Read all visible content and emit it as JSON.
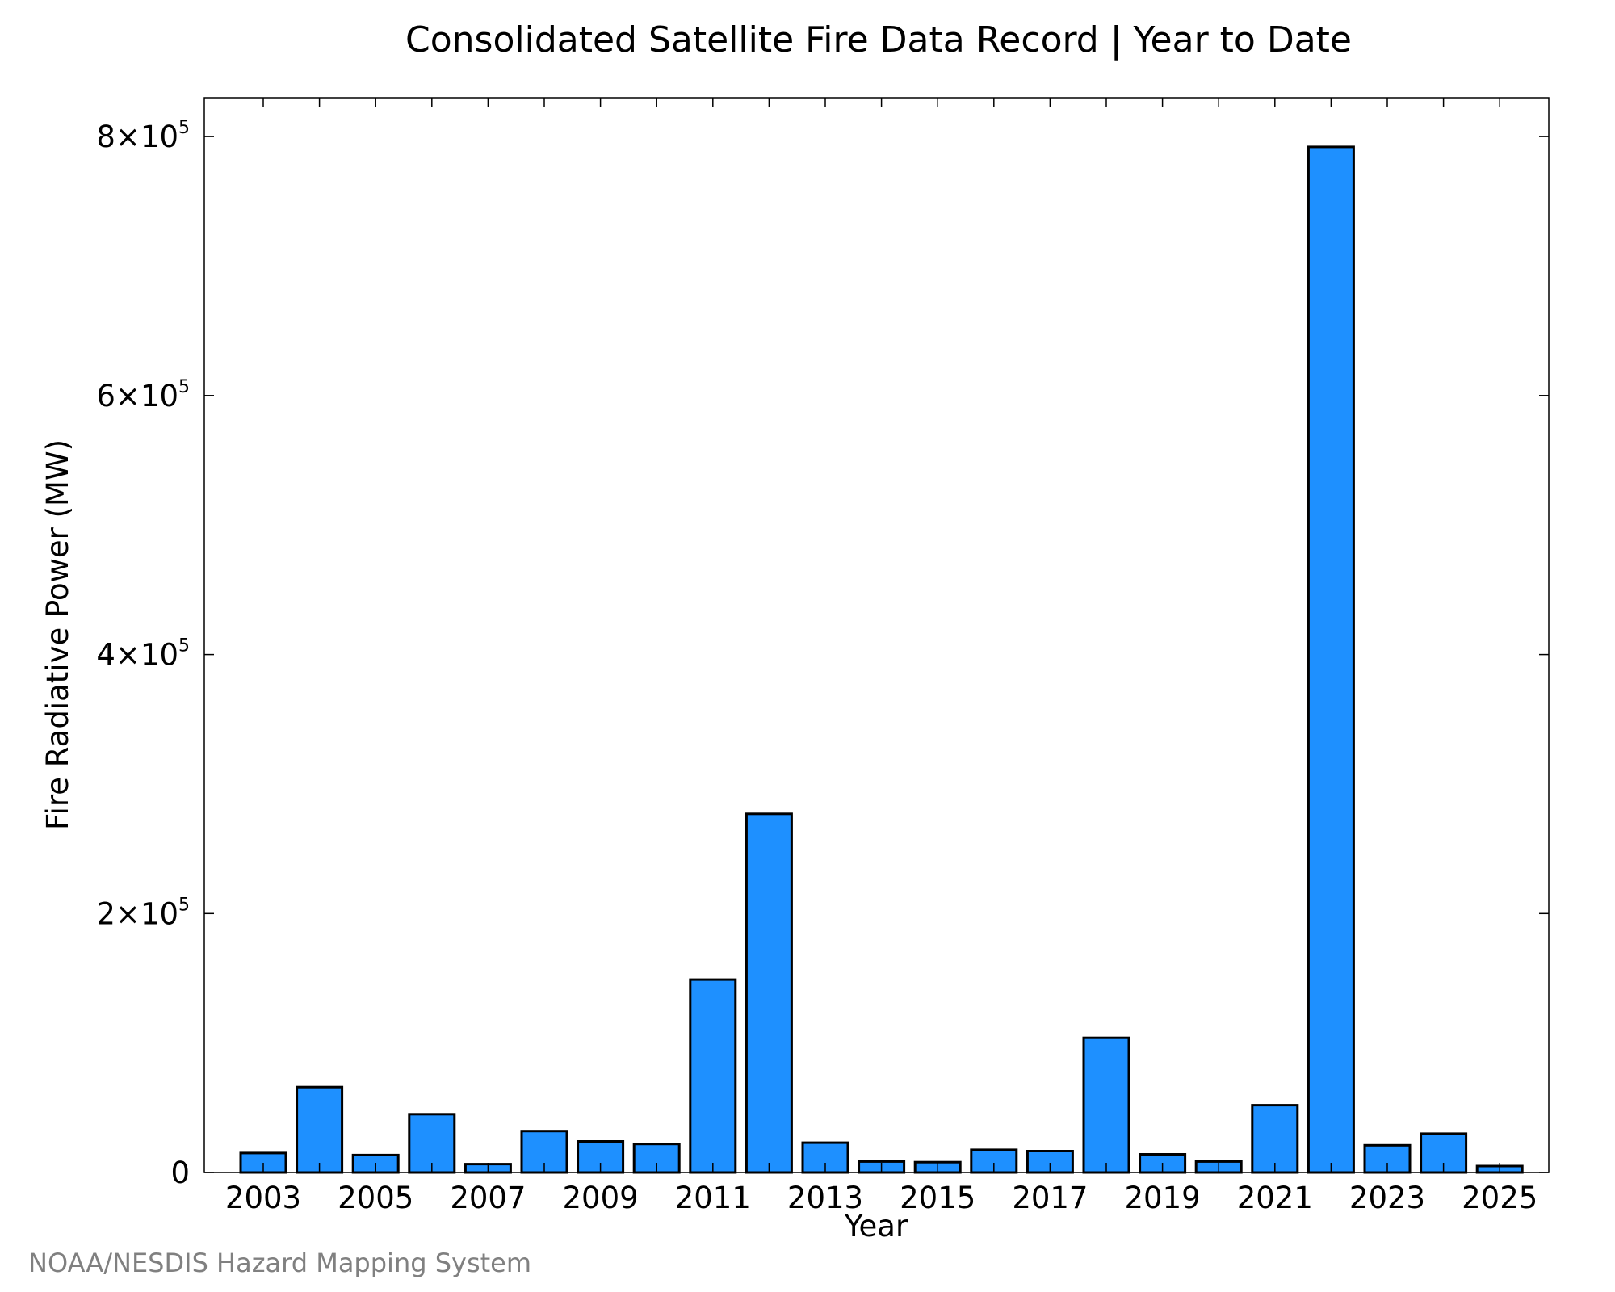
{
  "chart_data": {
    "type": "bar",
    "title": "Consolidated Satellite Fire Data Record | Year to Date",
    "xlabel": "Year",
    "ylabel": "Fire Radiative Power (MW)",
    "categories": [
      "2003",
      "2004",
      "2005",
      "2006",
      "2007",
      "2008",
      "2009",
      "2010",
      "2011",
      "2012",
      "2013",
      "2014",
      "2015",
      "2016",
      "2017",
      "2018",
      "2019",
      "2020",
      "2021",
      "2022",
      "2023",
      "2024",
      "2025"
    ],
    "values": [
      15000,
      66000,
      13500,
      45000,
      6500,
      32000,
      24000,
      22000,
      149000,
      277000,
      23000,
      8500,
      8000,
      17500,
      16500,
      104000,
      14000,
      8500,
      52000,
      792000,
      21000,
      30000,
      5000
    ],
    "ylim": [
      0,
      830000
    ],
    "yticks": [
      {
        "value": 0,
        "mantissa": "0",
        "exp": ""
      },
      {
        "value": 200000,
        "mantissa": "2×10",
        "exp": "5"
      },
      {
        "value": 400000,
        "mantissa": "4×10",
        "exp": "5"
      },
      {
        "value": 600000,
        "mantissa": "6×10",
        "exp": "5"
      },
      {
        "value": 800000,
        "mantissa": "8×10",
        "exp": "5"
      }
    ],
    "xtick_labels": [
      "2003",
      "2005",
      "2007",
      "2009",
      "2011",
      "2013",
      "2015",
      "2017",
      "2019",
      "2021",
      "2023",
      "2025"
    ],
    "bar_color": "#1e90ff",
    "grid": false,
    "source": "NOAA/NESDIS Hazard Mapping System"
  }
}
